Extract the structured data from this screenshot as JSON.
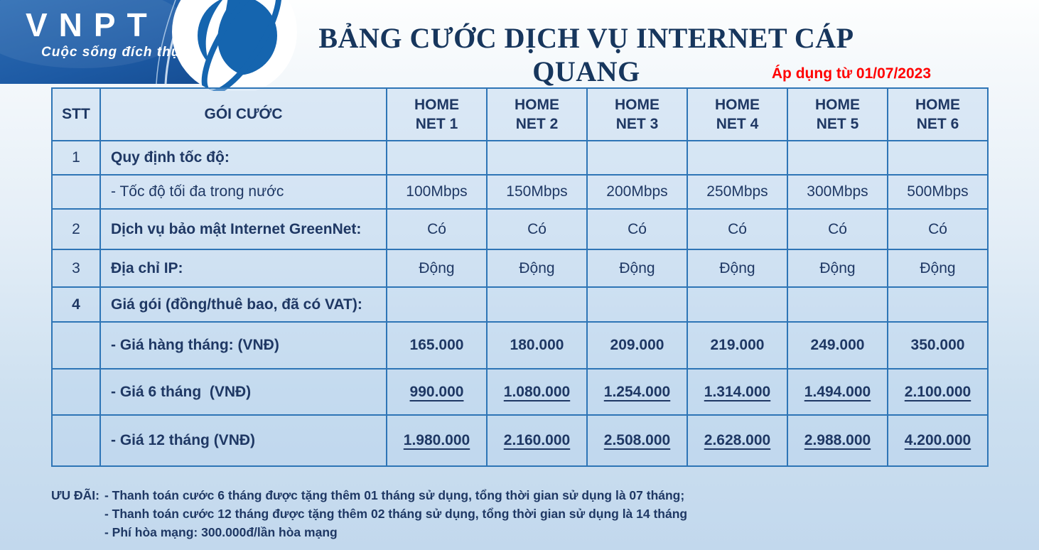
{
  "brand": {
    "name": "VNPT",
    "tagline": "Cuộc sống đích thực"
  },
  "header": {
    "title": "BẢNG CƯỚC DỊCH VỤ INTERNET CÁP QUANG",
    "effective_date": "Áp dụng từ 01/07/2023"
  },
  "colors": {
    "banner_blue": "#1d5aa4",
    "table_border": "#2e75b6",
    "text_navy": "#1f3864",
    "date_red": "#ff0000"
  },
  "table": {
    "columns": {
      "stt": "STT",
      "goi_cuoc": "GÓI CƯỚC"
    },
    "plans": [
      {
        "l1": "HOME",
        "l2": "NET 1"
      },
      {
        "l1": "HOME",
        "l2": "NET 2"
      },
      {
        "l1": "HOME",
        "l2": "NET 3"
      },
      {
        "l1": "HOME",
        "l2": "NET 4"
      },
      {
        "l1": "HOME",
        "l2": "NET 5"
      },
      {
        "l1": "HOME",
        "l2": "NET 6"
      }
    ],
    "rows": [
      {
        "stt": "1",
        "stt_bold": false,
        "label": "Quy định tốc độ:",
        "label_bold": true,
        "values": [
          "",
          "",
          "",
          "",
          "",
          ""
        ],
        "values_bold": false,
        "values_underline": false
      },
      {
        "stt": "",
        "stt_bold": false,
        "label": "- Tốc độ tối đa trong nước",
        "label_bold": false,
        "values": [
          "100Mbps",
          "150Mbps",
          "200Mbps",
          "250Mbps",
          "300Mbps",
          "500Mbps"
        ],
        "values_bold": false,
        "values_underline": false
      },
      {
        "stt": "2",
        "stt_bold": false,
        "label": "Dịch vụ bảo mật Internet GreenNet:",
        "label_bold": true,
        "values": [
          "Có",
          "Có",
          "Có",
          "Có",
          "Có",
          "Có"
        ],
        "values_bold": false,
        "values_underline": false
      },
      {
        "stt": "3",
        "stt_bold": false,
        "label": "Địa chỉ IP:",
        "label_bold": true,
        "values": [
          "Động",
          "Động",
          "Động",
          "Động",
          "Động",
          "Động"
        ],
        "values_bold": false,
        "values_underline": false
      },
      {
        "stt": "4",
        "stt_bold": true,
        "label": "Giá gói (đồng/thuê bao, đã có VAT):",
        "label_bold": true,
        "values": [
          "",
          "",
          "",
          "",
          "",
          ""
        ],
        "values_bold": false,
        "values_underline": false
      },
      {
        "stt": "",
        "stt_bold": false,
        "label": "- Giá hàng tháng: (VNĐ)",
        "label_bold": true,
        "values": [
          "165.000",
          "180.000",
          "209.000",
          "219.000",
          "249.000",
          "350.000"
        ],
        "values_bold": true,
        "values_underline": false
      },
      {
        "stt": "",
        "stt_bold": false,
        "label": "- Giá 6 tháng  (VNĐ)",
        "label_bold": true,
        "values": [
          "990.000",
          "1.080.000",
          "1.254.000",
          "1.314.000",
          "1.494.000",
          "2.100.000"
        ],
        "values_bold": true,
        "values_underline": true
      },
      {
        "stt": "",
        "stt_bold": false,
        "label": "- Giá 12 tháng (VNĐ)",
        "label_bold": true,
        "values": [
          "1.980.000",
          "2.160.000",
          "2.508.000",
          "2.628.000",
          "2.988.000",
          "4.200.000"
        ],
        "values_bold": true,
        "values_underline": true
      }
    ]
  },
  "notes": {
    "label": "ƯU ĐÃI:",
    "items": [
      "- Thanh toán cước 6 tháng được tặng thêm 01 tháng sử dụng, tổng thời gian sử dụng là 07 tháng;",
      "- Thanh toán cước 12 tháng được tặng thêm 02 tháng sử dụng, tổng thời gian sử dụng là 14 tháng",
      "- Phí hòa mạng: 300.000đ/lần hòa mạng"
    ]
  }
}
